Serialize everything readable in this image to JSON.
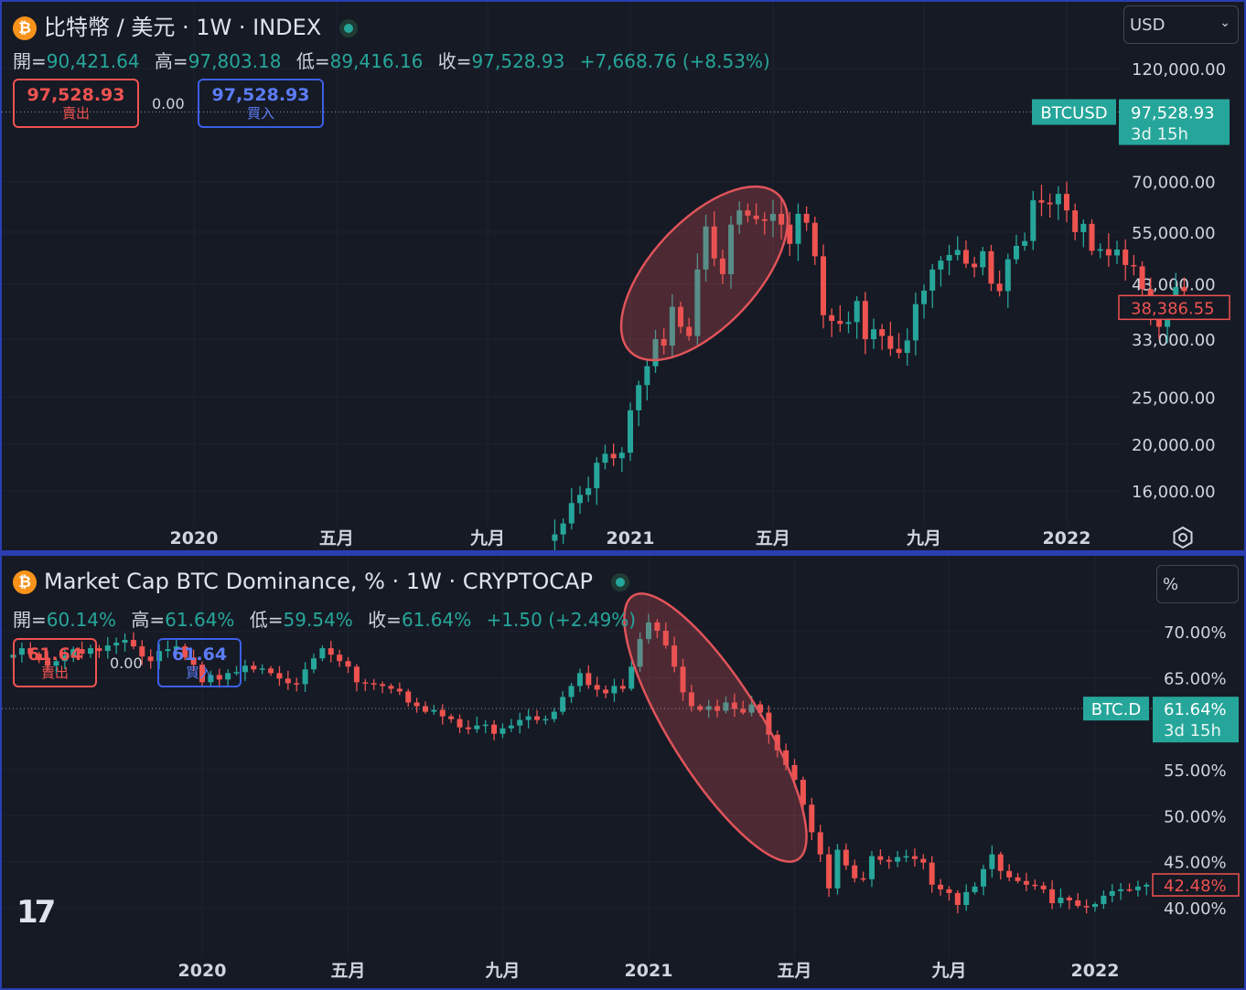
{
  "top_chart": {
    "title": "比特幣 / 美元 · 1W · INDEX",
    "coin_icon": "bitcoin-icon",
    "ohlc": {
      "open_label": "開=",
      "open": "90,421.64",
      "high_label": "高=",
      "high": "97,803.18",
      "low_label": "低=",
      "low": "89,416.16",
      "close_label": "收=",
      "close": "97,528.93",
      "change": "+7,668.76 (+8.53%)"
    },
    "sell": {
      "price": "97,528.93",
      "label": "賣出"
    },
    "spread": "0.00",
    "buy": {
      "price": "97,528.93",
      "label": "買入"
    },
    "currency_select": "USD",
    "symbol_tag": "BTCUSD",
    "last_price": "97,528.93",
    "countdown": "3d 15h",
    "cursor_price": "38,386.55",
    "colors": {
      "up": "#26a69a",
      "down": "#ef5350",
      "highlight": "#e0545a"
    }
  },
  "bottom_chart": {
    "title": "Market Cap BTC Dominance, % · 1W · CRYPTOCAP",
    "coin_icon": "bitcoin-icon",
    "ohlc": {
      "open_label": "開=",
      "open": "60.14%",
      "high_label": "高=",
      "high": "61.64%",
      "low_label": "低=",
      "low": "59.54%",
      "close_label": "收=",
      "close": "61.64%",
      "change": "+1.50 (+2.49%)"
    },
    "sell": {
      "price": "61.64",
      "label": "賣出"
    },
    "spread": "0.00",
    "buy": {
      "price": "61.64",
      "label": "買入"
    },
    "unit_select": "%",
    "symbol_tag": "BTC.D",
    "last_price": "61.64%",
    "countdown": "3d 15h",
    "cursor_price": "42.48%"
  },
  "chart_data": [
    {
      "type": "candlestick",
      "title": "比特幣 / 美元 · 1W · INDEX",
      "y_scale": "log",
      "y_ticks": [
        "120,000.00",
        "70,000.00",
        "55,000.00",
        "43,000.00",
        "33,000.00",
        "25,000.00",
        "20,000.00",
        "16,000.00"
      ],
      "y_tick_values": [
        120000,
        70000,
        55000,
        43000,
        33000,
        25000,
        20000,
        16000
      ],
      "x_ticks": [
        "2020",
        "五月",
        "九月",
        "2021",
        "五月",
        "九月",
        "2022"
      ],
      "x_tick_weeks": [
        0,
        17,
        35,
        52,
        69,
        87,
        104
      ],
      "start_week": 43,
      "closes": [
        13000,
        13700,
        15100,
        15700,
        16200,
        18300,
        19100,
        18700,
        19200,
        23500,
        26500,
        29000,
        33000,
        32000,
        38500,
        35000,
        33500,
        46000,
        56500,
        48500,
        45000,
        57000,
        61000,
        59500,
        58500,
        58000,
        60000,
        57000,
        52000,
        60000,
        57500,
        49000,
        37000,
        36000,
        35500,
        35800,
        39600,
        33000,
        34600,
        33500,
        31500,
        30900,
        32800,
        39000,
        41600,
        46000,
        48000,
        49300,
        50500,
        47300,
        46500,
        50200,
        43000,
        41500,
        48300,
        51500,
        52700,
        64000,
        63300,
        62800,
        66000,
        61000,
        55000,
        57200,
        50300,
        50700,
        49200,
        50600,
        47000,
        46700,
        41900,
        37000,
        35000,
        38500,
        42300,
        41500
      ],
      "series_colors": {
        "up": "#26a69a",
        "down": "#ef5350"
      }
    },
    {
      "type": "candlestick",
      "title": "Market Cap BTC Dominance, % · 1W · CRYPTOCAP",
      "y_ticks": [
        "70.00%",
        "65.00%",
        "55.00%",
        "50.00%",
        "45.00%",
        "40.00%"
      ],
      "y_tick_values": [
        70,
        65,
        55,
        50,
        45,
        40
      ],
      "x_ticks": [
        "2020",
        "五月",
        "九月",
        "2021",
        "五月",
        "九月",
        "2022"
      ],
      "x_tick_weeks": [
        0,
        17,
        35,
        52,
        69,
        87,
        104
      ],
      "start_week": -22,
      "closes": [
        67.5,
        68.2,
        67.6,
        66.9,
        66.3,
        66.8,
        67.4,
        68.1,
        67.6,
        68.2,
        67.9,
        68.5,
        68.8,
        69.1,
        68.4,
        67.3,
        66.8,
        67.9,
        68.1,
        68.4,
        67.2,
        66.4,
        64.5,
        65.3,
        64.8,
        65.5,
        65.6,
        66.3,
        65.9,
        66.0,
        65.5,
        64.9,
        64.4,
        64.3,
        65.9,
        67.1,
        68.2,
        67.5,
        66.8,
        66.2,
        64.5,
        64.4,
        64.3,
        64.1,
        63.8,
        63.5,
        62.3,
        61.9,
        61.3,
        61.5,
        60.8,
        60.5,
        59.6,
        59.4,
        59.8,
        59.9,
        58.9,
        59.5,
        59.8,
        60.4,
        60.8,
        60.4,
        60.5,
        61.3,
        62.9,
        64.1,
        65.5,
        64.2,
        63.7,
        63.3,
        64.1,
        63.8,
        66.2,
        69.2,
        71.0,
        70.1,
        68.5,
        66.2,
        63.4,
        61.9,
        61.5,
        61.9,
        61.4,
        62.3,
        61.6,
        61.2,
        62.1,
        61.2,
        58.8,
        57.1,
        55.5,
        53.9,
        51.2,
        48.2,
        45.8,
        42.1,
        46.3,
        44.6,
        43.2,
        43.1,
        45.6,
        45.2,
        45.0,
        45.5,
        45.6,
        45.3,
        44.9,
        42.5,
        42.0,
        41.6,
        40.3,
        41.7,
        42.3,
        44.2,
        45.8,
        44.0,
        43.3,
        42.9,
        42.5,
        42.4,
        42.0,
        40.5,
        41.1,
        40.8,
        40.2,
        40.1,
        40.4,
        41.3,
        41.8,
        42.0,
        41.9,
        42.3,
        42.5
      ],
      "series_colors": {
        "up": "#26a69a",
        "down": "#ef5350"
      }
    }
  ]
}
